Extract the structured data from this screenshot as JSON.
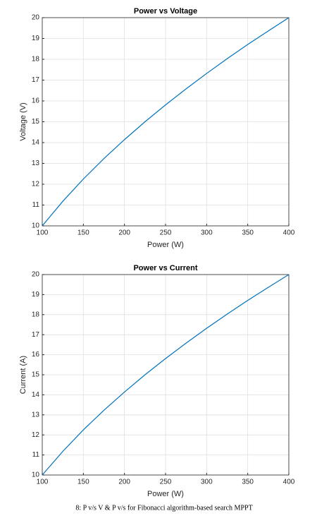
{
  "chart_data": [
    {
      "type": "line",
      "title": "Power vs Voltage",
      "xlabel": "Power (W)",
      "ylabel": "Voltage (V)",
      "x": [
        100,
        125,
        150,
        175,
        200,
        225,
        250,
        275,
        300,
        325,
        350,
        375,
        400
      ],
      "values": [
        10,
        11.18,
        12.25,
        13.23,
        14.14,
        15,
        15.81,
        16.58,
        17.32,
        18.03,
        18.71,
        19.36,
        20
      ],
      "color": "#0072bd",
      "xlim": [
        100,
        400
      ],
      "xticks": [
        100,
        150,
        200,
        250,
        300,
        350,
        400
      ],
      "ylim": [
        10,
        20
      ],
      "yticks": [
        10,
        11,
        12,
        13,
        14,
        15,
        16,
        17,
        18,
        19,
        20
      ],
      "grid": true
    },
    {
      "type": "line",
      "title": "Power vs Current",
      "xlabel": "Power (W)",
      "ylabel": "Current (A)",
      "x": [
        100,
        125,
        150,
        175,
        200,
        225,
        250,
        275,
        300,
        325,
        350,
        375,
        400
      ],
      "values": [
        10,
        11.18,
        12.25,
        13.23,
        14.14,
        15,
        15.81,
        16.58,
        17.32,
        18.03,
        18.71,
        19.36,
        20
      ],
      "color": "#0072bd",
      "xlim": [
        100,
        400
      ],
      "xticks": [
        100,
        150,
        200,
        250,
        300,
        350,
        400
      ],
      "ylim": [
        10,
        20
      ],
      "yticks": [
        10,
        11,
        12,
        13,
        14,
        15,
        16,
        17,
        18,
        19,
        20
      ],
      "grid": true
    }
  ],
  "caption": "8: P v/s V & P v/s for Fibonacci algorithm-based search MPPT"
}
